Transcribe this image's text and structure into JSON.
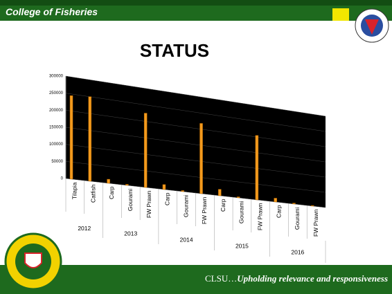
{
  "header": {
    "college": "College of Fisheries"
  },
  "footer": {
    "prefix": "CLSU…",
    "tagline": "Upholding relevance and responsiveness"
  },
  "chart_data": {
    "type": "bar",
    "title": "STATUS",
    "categories": [
      "Tilapia",
      "Catfish",
      "Carp",
      "Gourami",
      "FW Prawn",
      "Carp",
      "Gourami",
      "FW Prawn",
      "Carp",
      "Gourami",
      "FW Prawn",
      "Carp",
      "Gourami",
      "FW Prawn"
    ],
    "groups": [
      {
        "label": "2012",
        "count": 2
      },
      {
        "label": "2013",
        "count": 3
      },
      {
        "label": "2014",
        "count": 3
      },
      {
        "label": "2015",
        "count": 3
      },
      {
        "label": "2016",
        "count": 3
      }
    ],
    "values": [
      245000,
      250000,
      12000,
      3000,
      225000,
      15000,
      3000,
      218000,
      20000,
      3000,
      205000,
      12000,
      3000,
      2000
    ],
    "color": "#f39a1e",
    "ylim": [
      0,
      300000
    ],
    "yticks": [
      0,
      50000,
      100000,
      150000,
      200000,
      250000,
      300000
    ],
    "grid": true
  }
}
